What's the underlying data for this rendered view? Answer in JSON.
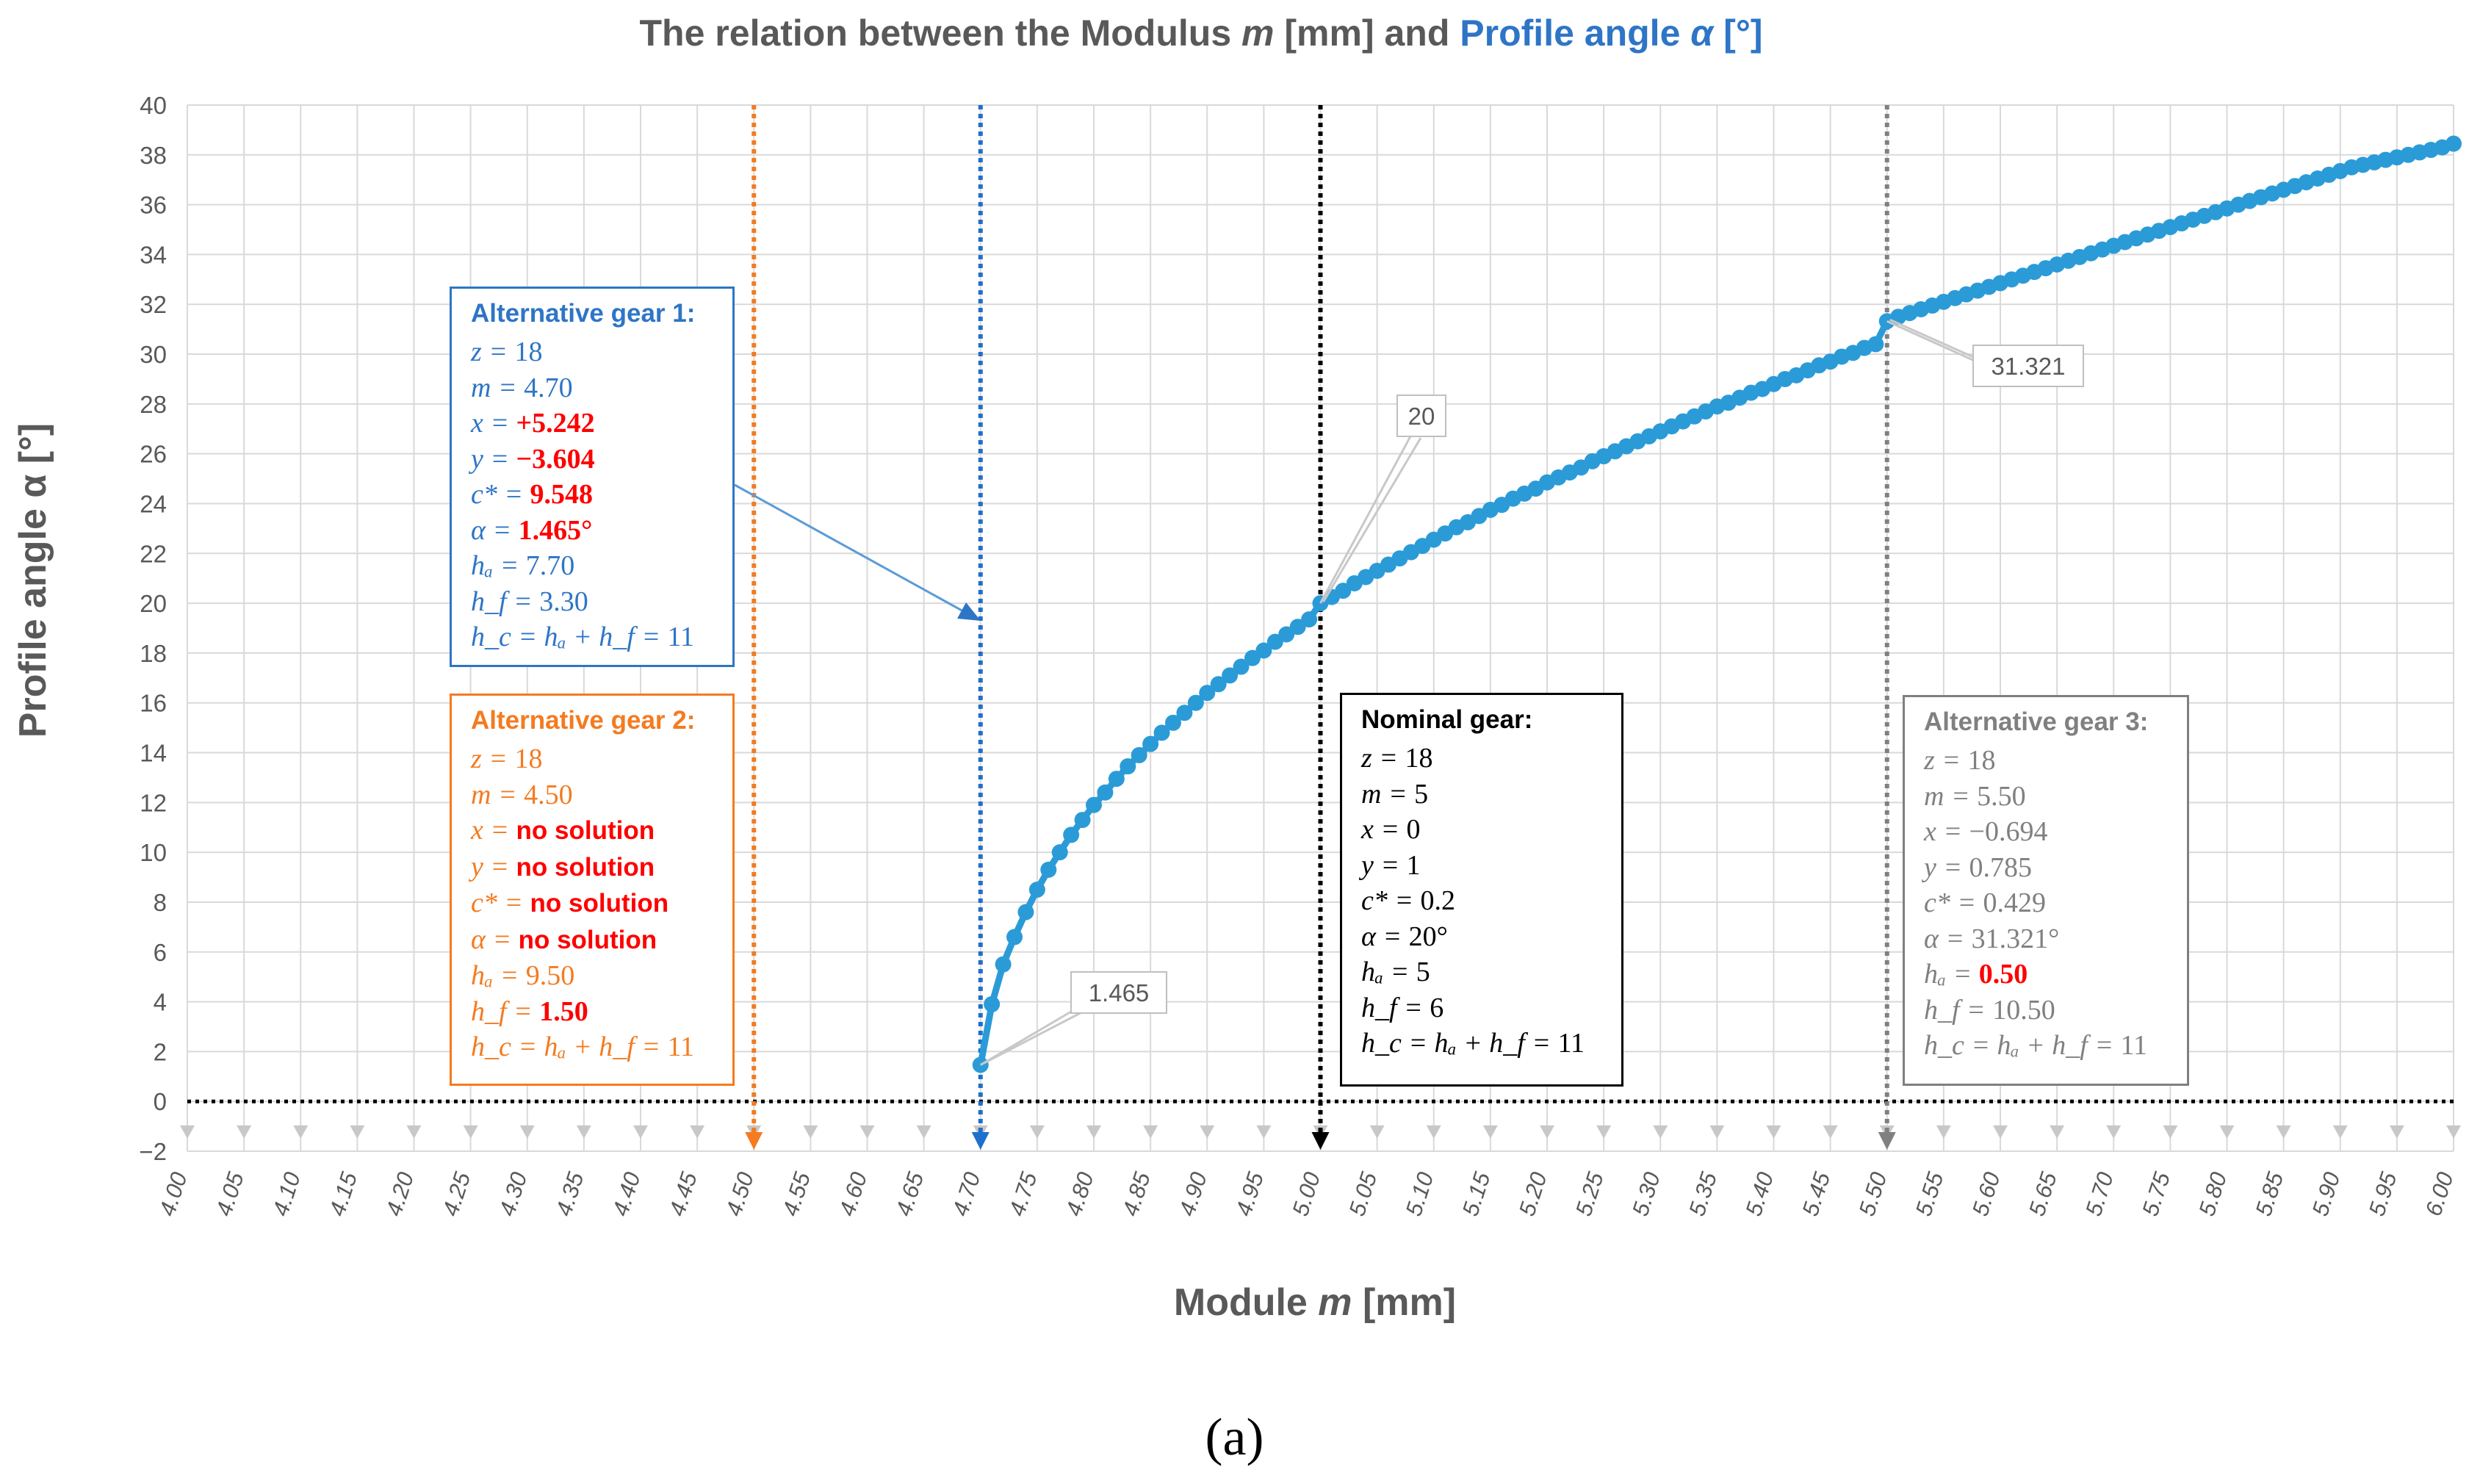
{
  "caption": "(a)",
  "chart_data": {
    "type": "line",
    "title_parts": [
      {
        "text": "The relation between the Modulus ",
        "color": "#595959",
        "italic": false
      },
      {
        "text": "m",
        "color": "#595959",
        "italic": true
      },
      {
        "text": " [mm] and ",
        "color": "#595959",
        "italic": false
      },
      {
        "text": "Profile angle ",
        "color": "#2e75c6",
        "italic": false
      },
      {
        "text": "α",
        "color": "#2e75c6",
        "italic": true
      },
      {
        "text": " [°]",
        "color": "#2e75c6",
        "italic": false
      }
    ],
    "xlabel_parts": [
      {
        "text": "Module ",
        "italic": false
      },
      {
        "text": "m",
        "italic": true
      },
      {
        "text": " [mm]",
        "italic": false
      }
    ],
    "ylabel_parts": [
      {
        "text": "Profile angle ",
        "italic": false
      },
      {
        "text": "α",
        "italic": false
      },
      {
        "text": " [°]",
        "italic": false
      }
    ],
    "xlim": [
      4.0,
      6.0
    ],
    "ylim": [
      -2,
      40
    ],
    "x_ticks": [
      "4.00",
      "4.05",
      "4.10",
      "4.15",
      "4.20",
      "4.25",
      "4.30",
      "4.35",
      "4.40",
      "4.45",
      "4.50",
      "4.55",
      "4.60",
      "4.65",
      "4.70",
      "4.75",
      "4.80",
      "4.85",
      "4.90",
      "4.95",
      "5.00",
      "5.05",
      "5.10",
      "5.15",
      "5.20",
      "5.25",
      "5.30",
      "5.35",
      "5.40",
      "5.45",
      "5.50",
      "5.55",
      "5.60",
      "5.65",
      "5.70",
      "5.75",
      "5.80",
      "5.85",
      "5.90",
      "5.95",
      "6.00"
    ],
    "y_ticks": [
      "−2",
      "0",
      "2",
      "4",
      "6",
      "8",
      "10",
      "12",
      "14",
      "16",
      "18",
      "20",
      "22",
      "24",
      "26",
      "28",
      "30",
      "32",
      "34",
      "36",
      "38",
      "40"
    ],
    "grid": true,
    "series": [
      {
        "name": "Profile angle",
        "color": "#2b9bd8",
        "x": [
          4.7,
          4.71,
          4.72,
          4.73,
          4.74,
          4.75,
          4.76,
          4.77,
          4.78,
          4.79,
          4.8,
          4.81,
          4.82,
          4.83,
          4.84,
          4.85,
          4.86,
          4.87,
          4.88,
          4.89,
          4.9,
          4.91,
          4.92,
          4.93,
          4.94,
          4.95,
          4.96,
          4.97,
          4.98,
          4.99,
          5.0,
          5.01,
          5.02,
          5.03,
          5.04,
          5.05,
          5.06,
          5.07,
          5.08,
          5.09,
          5.1,
          5.11,
          5.12,
          5.13,
          5.14,
          5.15,
          5.16,
          5.17,
          5.18,
          5.19,
          5.2,
          5.21,
          5.22,
          5.23,
          5.24,
          5.25,
          5.26,
          5.27,
          5.28,
          5.29,
          5.3,
          5.31,
          5.32,
          5.33,
          5.34,
          5.35,
          5.36,
          5.37,
          5.38,
          5.39,
          5.4,
          5.41,
          5.42,
          5.43,
          5.44,
          5.45,
          5.46,
          5.47,
          5.48,
          5.49,
          5.5,
          5.51,
          5.52,
          5.53,
          5.54,
          5.55,
          5.56,
          5.57,
          5.58,
          5.59,
          5.6,
          5.61,
          5.62,
          5.63,
          5.64,
          5.65,
          5.66,
          5.67,
          5.68,
          5.69,
          5.7,
          5.71,
          5.72,
          5.73,
          5.74,
          5.75,
          5.76,
          5.77,
          5.78,
          5.79,
          5.8,
          5.81,
          5.82,
          5.83,
          5.84,
          5.85,
          5.86,
          5.87,
          5.88,
          5.89,
          5.9,
          5.91,
          5.92,
          5.93,
          5.94,
          5.95,
          5.96,
          5.97,
          5.98,
          5.99,
          6.0
        ],
        "y": [
          1.465,
          3.9,
          5.5,
          6.6,
          7.6,
          8.5,
          9.3,
          10.0,
          10.7,
          11.3,
          11.9,
          12.4,
          12.95,
          13.45,
          13.9,
          14.35,
          14.8,
          15.2,
          15.6,
          16.0,
          16.4,
          16.75,
          17.1,
          17.45,
          17.8,
          18.1,
          18.45,
          18.75,
          19.05,
          19.35,
          20.0,
          20.25,
          20.5,
          20.8,
          21.05,
          21.3,
          21.55,
          21.8,
          22.05,
          22.3,
          22.55,
          22.8,
          23.05,
          23.25,
          23.5,
          23.75,
          23.95,
          24.2,
          24.4,
          24.6,
          24.85,
          25.05,
          25.25,
          25.45,
          25.7,
          25.9,
          26.1,
          26.3,
          26.5,
          26.7,
          26.9,
          27.1,
          27.3,
          27.5,
          27.7,
          27.9,
          28.05,
          28.25,
          28.45,
          28.6,
          28.8,
          29.0,
          29.15,
          29.35,
          29.55,
          29.7,
          29.9,
          30.05,
          30.25,
          30.4,
          31.321,
          31.5,
          31.65,
          31.8,
          31.95,
          32.1,
          32.25,
          32.4,
          32.55,
          32.7,
          32.85,
          33.0,
          33.15,
          33.3,
          33.45,
          33.6,
          33.75,
          33.9,
          34.05,
          34.2,
          34.35,
          34.5,
          34.65,
          34.8,
          34.95,
          35.1,
          35.25,
          35.4,
          35.55,
          35.7,
          35.85,
          36.0,
          36.15,
          36.3,
          36.45,
          36.6,
          36.75,
          36.9,
          37.05,
          37.2,
          37.35,
          37.5,
          37.6,
          37.7,
          37.8,
          37.9,
          38.0,
          38.1,
          38.2,
          38.3,
          38.45
        ]
      }
    ],
    "point_labels": [
      {
        "x": 4.7,
        "y": 1.465,
        "text": "1.465"
      },
      {
        "x": 5.0,
        "y": 20.0,
        "text": "20"
      },
      {
        "x": 5.5,
        "y": 31.321,
        "text": "31.321"
      }
    ],
    "vertical_lines": [
      {
        "x": 4.5,
        "color": "#f47b20",
        "name": "alt-gear-2-line"
      },
      {
        "x": 4.7,
        "color": "#1f6fcc",
        "name": "alt-gear-1-line"
      },
      {
        "x": 5.0,
        "color": "#000000",
        "name": "nominal-gear-line"
      },
      {
        "x": 5.5,
        "color": "#808080",
        "name": "alt-gear-3-line"
      }
    ],
    "zero_line": {
      "y": 0,
      "color": "#000000"
    }
  },
  "boxes": {
    "alt1": {
      "title": "Alternative gear 1:",
      "color": "#2e75c6",
      "lines": [
        {
          "pre": "z = ",
          "val": "18",
          "red": false
        },
        {
          "pre": "m = ",
          "val": "4.70",
          "red": false
        },
        {
          "pre": "x = ",
          "val": "+5.242",
          "red": true
        },
        {
          "pre": "y = ",
          "val": "−3.604",
          "red": true
        },
        {
          "pre": "c* = ",
          "val": "9.548",
          "red": true
        },
        {
          "pre": "α = ",
          "val": "1.465°",
          "red": true
        },
        {
          "pre": "hₐ = ",
          "val": "7.70",
          "red": false
        },
        {
          "pre": "h_f = ",
          "val": "3.30",
          "red": false
        },
        {
          "pre": "h_c = hₐ + h_f = ",
          "val": "11",
          "red": false
        }
      ]
    },
    "alt2": {
      "title": "Alternative gear 2:",
      "color": "#f47b20",
      "lines": [
        {
          "pre": "z = ",
          "val": "18",
          "red": false
        },
        {
          "pre": "m = ",
          "val": "4.50",
          "red": false
        },
        {
          "pre": "x = ",
          "val": "no solution",
          "red": true
        },
        {
          "pre": "y = ",
          "val": "no solution",
          "red": true
        },
        {
          "pre": "c* = ",
          "val": "no solution",
          "red": true
        },
        {
          "pre": "α = ",
          "val": "no solution",
          "red": true
        },
        {
          "pre": "hₐ = ",
          "val": "9.50",
          "red": false
        },
        {
          "pre": "h_f = ",
          "val": "1.50",
          "red": true
        },
        {
          "pre": "h_c = hₐ + h_f = ",
          "val": "11",
          "red": false
        }
      ]
    },
    "nominal": {
      "title": "Nominal gear:",
      "color": "#000000",
      "lines": [
        {
          "pre": "z = ",
          "val": "18",
          "red": false
        },
        {
          "pre": "m = ",
          "val": "5",
          "red": false
        },
        {
          "pre": "x = ",
          "val": "0",
          "red": false
        },
        {
          "pre": "y = ",
          "val": "1",
          "red": false
        },
        {
          "pre": "c* = ",
          "val": "0.2",
          "red": false
        },
        {
          "pre": "α = ",
          "val": "20°",
          "red": false
        },
        {
          "pre": "hₐ = ",
          "val": "5",
          "red": false
        },
        {
          "pre": "h_f = ",
          "val": "6",
          "red": false
        },
        {
          "pre": "h_c = hₐ + h_f = ",
          "val": "11",
          "red": false
        }
      ]
    },
    "alt3": {
      "title": "Alternative gear 3:",
      "color": "#808080",
      "lines": [
        {
          "pre": "z = ",
          "val": "18",
          "red": false
        },
        {
          "pre": "m = ",
          "val": "5.50",
          "red": false
        },
        {
          "pre": "x = ",
          "val": "−0.694",
          "red": false
        },
        {
          "pre": "y = ",
          "val": "0.785",
          "red": false
        },
        {
          "pre": "c* = ",
          "val": "0.429",
          "red": false
        },
        {
          "pre": "α = ",
          "val": "31.321°",
          "red": false
        },
        {
          "pre": "hₐ = ",
          "val": "0.50",
          "red": true
        },
        {
          "pre": "h_f = ",
          "val": "10.50",
          "red": false
        },
        {
          "pre": "h_c = hₐ + h_f = ",
          "val": "11",
          "red": false
        }
      ]
    }
  }
}
